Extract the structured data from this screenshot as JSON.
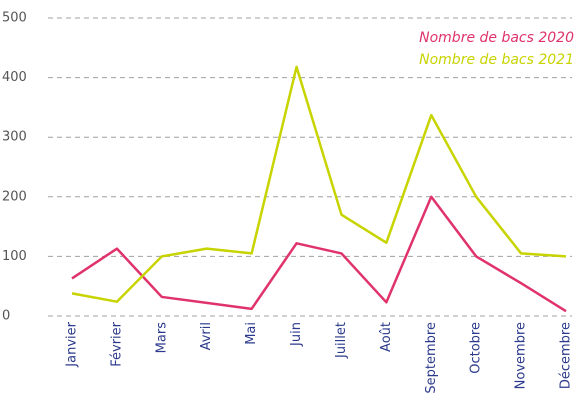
{
  "chart_data": {
    "type": "line",
    "categories": [
      "Janvier",
      "Février",
      "Mars",
      "Avril",
      "Mai",
      "Juin",
      "Juillet",
      "Août",
      "Septembre",
      "Octobre",
      "Novembre",
      "Décembre"
    ],
    "series": [
      {
        "name": "Nombre de bacs 2020",
        "color": "#e0336b",
        "values": [
          63,
          113,
          32,
          22,
          12,
          122,
          105,
          23,
          200,
          100,
          55,
          8
        ]
      },
      {
        "name": "Nombre de bacs 2021",
        "color": "#c8d400",
        "values": [
          38,
          24,
          100,
          113,
          105,
          418,
          170,
          123,
          337,
          200,
          105,
          100
        ]
      }
    ],
    "ylim": [
      0,
      500
    ],
    "yticks": [
      0,
      100,
      200,
      300,
      400,
      500
    ],
    "grid": true,
    "legend": "top-right"
  }
}
